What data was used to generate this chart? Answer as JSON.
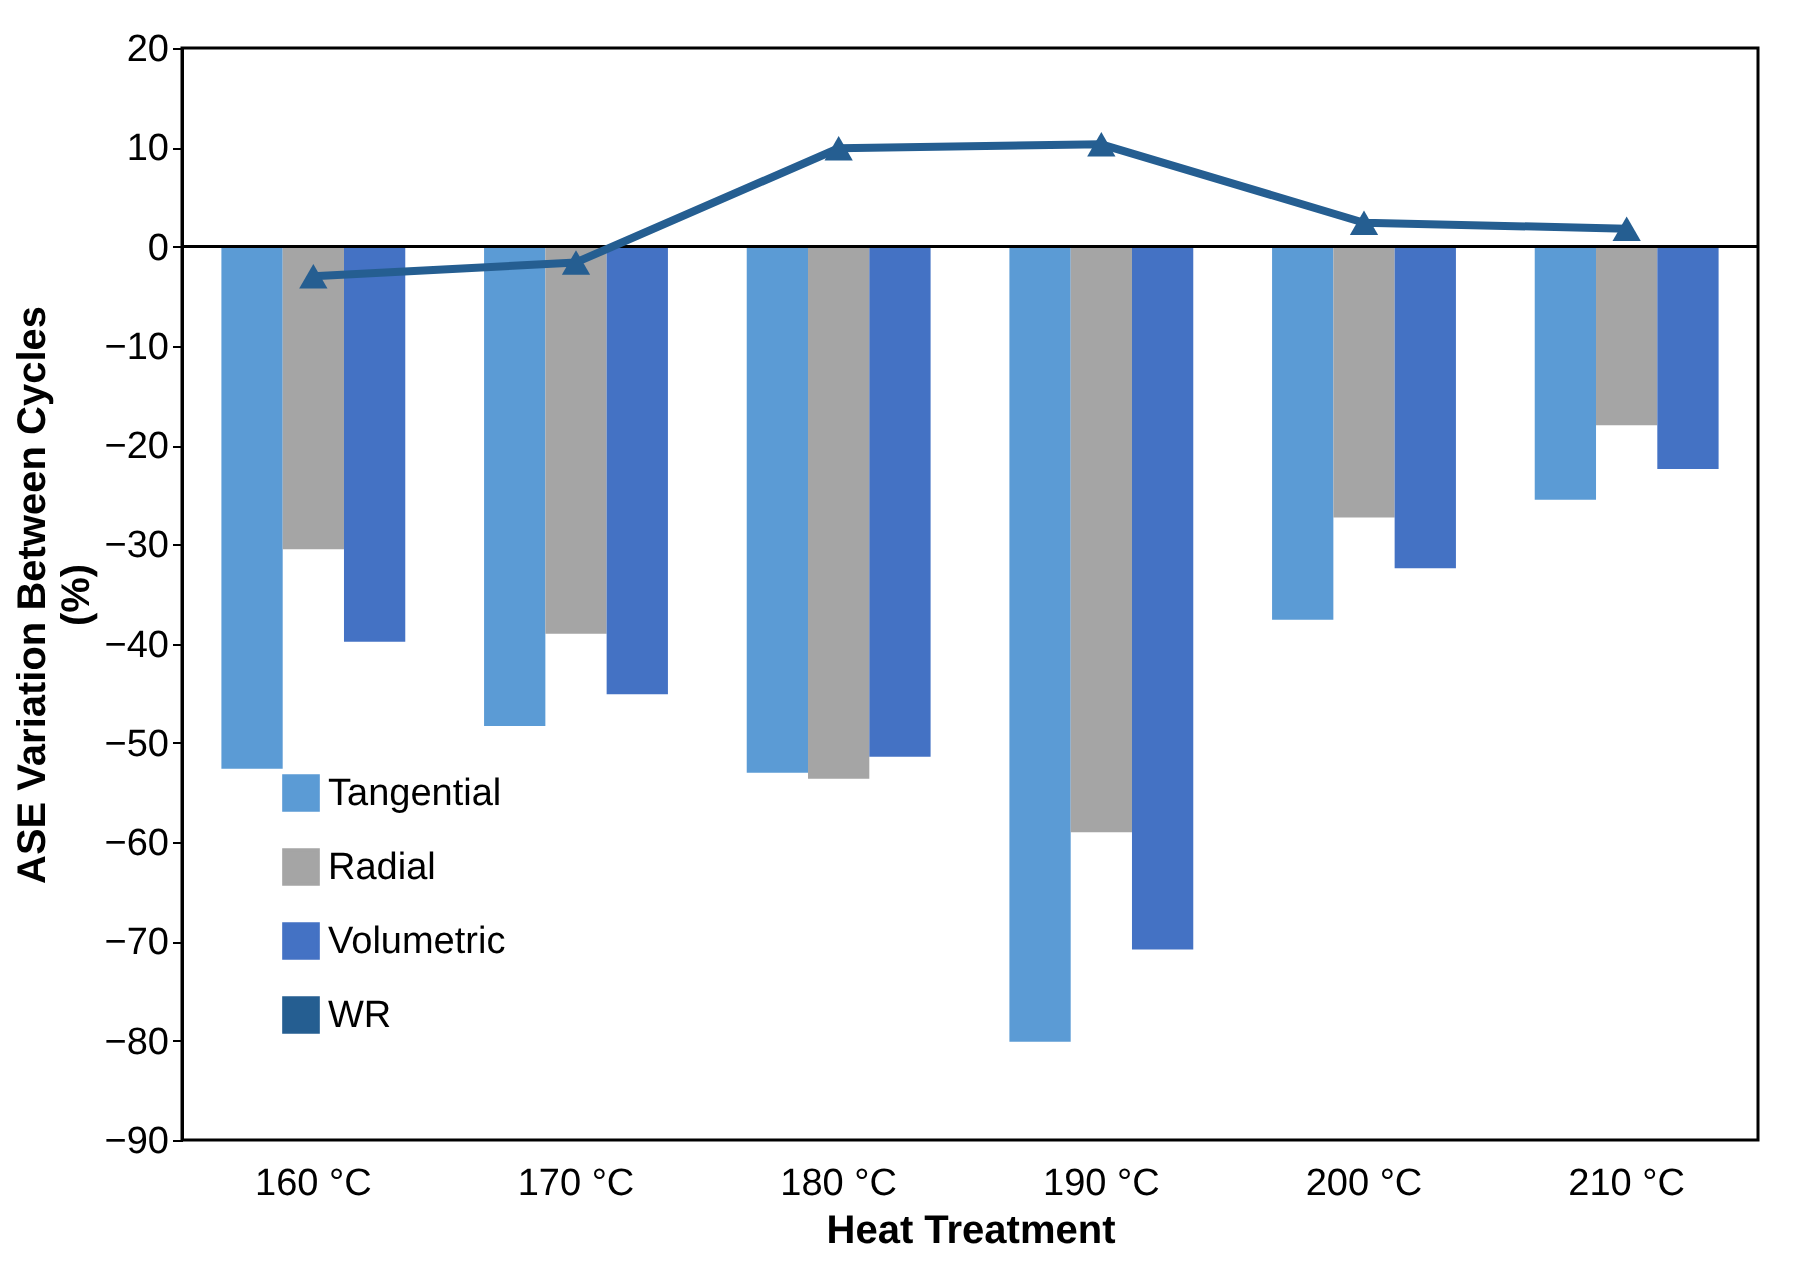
{
  "chart_data": {
    "type": "bar",
    "xlabel": "Heat Treatment",
    "ylabel": "ASE Variation Between Cycles\n(%)",
    "categories": [
      "160 °C",
      "170 °C",
      "180 °C",
      "190 °C",
      "200 °C",
      "210 °C"
    ],
    "series": [
      {
        "name": "Tangential",
        "color": "#5b9bd5",
        "values": [
          -52.6,
          -48.3,
          -53.0,
          -80.1,
          -37.6,
          -25.5
        ]
      },
      {
        "name": "Radial",
        "color": "#a5a5a5",
        "values": [
          -30.5,
          -39.0,
          -53.6,
          -59.0,
          -27.3,
          -18.0
        ]
      },
      {
        "name": "Volumetric",
        "color": "#4472c4",
        "values": [
          -39.8,
          -45.1,
          -51.4,
          -70.8,
          -32.4,
          -22.4
        ]
      },
      {
        "name": "WR",
        "type": "line",
        "color": "#255e91",
        "marker": "triangle",
        "values": [
          -3.0,
          -1.6,
          9.9,
          10.3,
          2.4,
          1.8
        ]
      }
    ],
    "ylim": [
      -90,
      20
    ],
    "yticks": [
      -90,
      -80,
      -70,
      -60,
      -50,
      -40,
      -30,
      -20,
      -10,
      0,
      10,
      20
    ],
    "ref_lines": [
      {
        "axis": "y",
        "value": 0,
        "color": "#000000"
      }
    ],
    "grid": false,
    "legend": "bottom left"
  }
}
